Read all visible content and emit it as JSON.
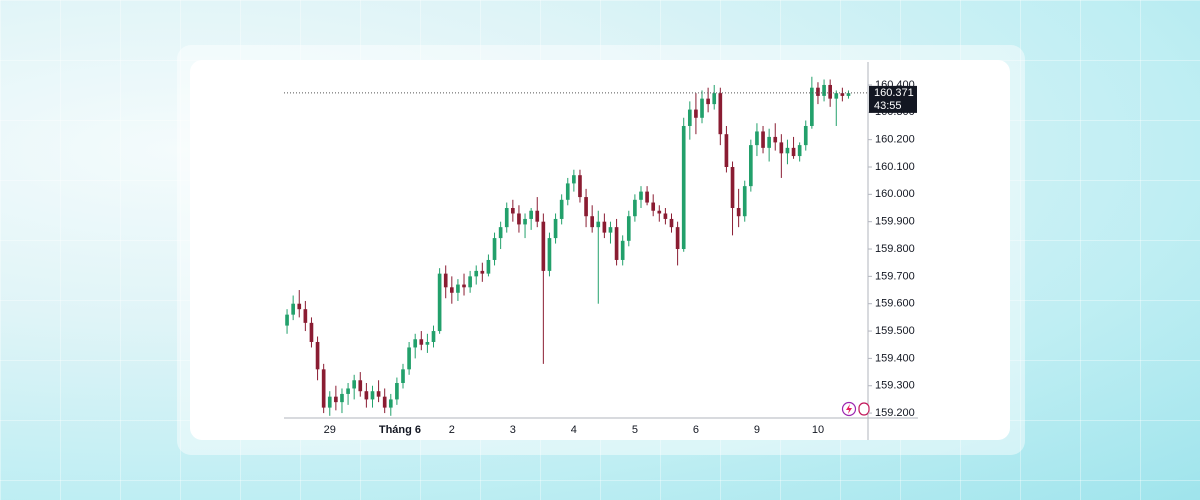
{
  "chart_data": {
    "type": "candlestick",
    "up_color": "#22a06b",
    "down_color": "#8a1c32",
    "xlim": [
      -0.5,
      95.2
    ],
    "xticks": [
      {
        "value": 7,
        "label": "29"
      },
      {
        "value": 18.5,
        "label": "Tháng 6"
      },
      {
        "value": 27,
        "label": "2"
      },
      {
        "value": 37,
        "label": "3"
      },
      {
        "value": 47,
        "label": "4"
      },
      {
        "value": 57,
        "label": "5"
      },
      {
        "value": 67,
        "label": "6"
      },
      {
        "value": 77,
        "label": "9"
      },
      {
        "value": 87,
        "label": "10"
      }
    ],
    "ylim": [
      159.182,
      160.484
    ],
    "yticks": [
      {
        "value": 159.2,
        "label": "159.200"
      },
      {
        "value": 159.3,
        "label": "159.300"
      },
      {
        "value": 159.4,
        "label": "159.400"
      },
      {
        "value": 159.5,
        "label": "159.500"
      },
      {
        "value": 159.6,
        "label": "159.600"
      },
      {
        "value": 159.7,
        "label": "159.700"
      },
      {
        "value": 159.8,
        "label": "159.800"
      },
      {
        "value": 159.9,
        "label": "159.900"
      },
      {
        "value": 160.0,
        "label": "160.000"
      },
      {
        "value": 160.1,
        "label": "160.100"
      },
      {
        "value": 160.2,
        "label": "160.200"
      },
      {
        "value": 160.3,
        "label": "160.300"
      },
      {
        "value": 160.4,
        "label": "160.400"
      }
    ],
    "last_price": 160.371,
    "countdown": "43:55",
    "ohlc": [
      [
        159.52,
        159.58,
        159.49,
        159.56
      ],
      [
        159.56,
        159.63,
        159.54,
        159.6
      ],
      [
        159.6,
        159.65,
        159.55,
        159.58
      ],
      [
        159.58,
        159.61,
        159.5,
        159.53
      ],
      [
        159.53,
        159.55,
        159.44,
        159.46
      ],
      [
        159.46,
        159.48,
        159.32,
        159.36
      ],
      [
        159.36,
        159.38,
        159.2,
        159.22
      ],
      [
        159.22,
        159.28,
        159.19,
        159.26
      ],
      [
        159.26,
        159.3,
        159.21,
        159.24
      ],
      [
        159.24,
        159.29,
        159.2,
        159.27
      ],
      [
        159.27,
        159.31,
        159.23,
        159.29
      ],
      [
        159.29,
        159.34,
        159.25,
        159.32
      ],
      [
        159.32,
        159.35,
        159.26,
        159.28
      ],
      [
        159.28,
        159.31,
        159.22,
        159.25
      ],
      [
        159.25,
        159.3,
        159.22,
        159.28
      ],
      [
        159.28,
        159.32,
        159.24,
        159.26
      ],
      [
        159.26,
        159.29,
        159.2,
        159.22
      ],
      [
        159.22,
        159.27,
        159.19,
        159.25
      ],
      [
        159.25,
        159.33,
        159.23,
        159.31
      ],
      [
        159.31,
        159.38,
        159.29,
        159.36
      ],
      [
        159.36,
        159.46,
        159.34,
        159.44
      ],
      [
        159.44,
        159.49,
        159.4,
        159.47
      ],
      [
        159.47,
        159.5,
        159.43,
        159.45
      ],
      [
        159.45,
        159.49,
        159.42,
        159.46
      ],
      [
        159.46,
        159.52,
        159.44,
        159.5
      ],
      [
        159.5,
        159.73,
        159.49,
        159.71
      ],
      [
        159.71,
        159.74,
        159.62,
        159.66
      ],
      [
        159.66,
        159.7,
        159.6,
        159.64
      ],
      [
        159.64,
        159.69,
        159.61,
        159.67
      ],
      [
        159.67,
        159.71,
        159.63,
        159.66
      ],
      [
        159.66,
        159.72,
        159.64,
        159.7
      ],
      [
        159.7,
        159.74,
        159.67,
        159.72
      ],
      [
        159.72,
        159.75,
        159.68,
        159.71
      ],
      [
        159.71,
        159.78,
        159.7,
        159.76
      ],
      [
        159.76,
        159.86,
        159.74,
        159.84
      ],
      [
        159.84,
        159.9,
        159.8,
        159.88
      ],
      [
        159.88,
        159.97,
        159.86,
        159.95
      ],
      [
        159.95,
        159.98,
        159.9,
        159.93
      ],
      [
        159.93,
        159.96,
        159.86,
        159.89
      ],
      [
        159.89,
        159.93,
        159.84,
        159.91
      ],
      [
        159.91,
        159.95,
        159.87,
        159.94
      ],
      [
        159.94,
        159.99,
        159.88,
        159.9
      ],
      [
        159.9,
        159.93,
        159.38,
        159.72
      ],
      [
        159.72,
        159.86,
        159.7,
        159.84
      ],
      [
        159.84,
        159.93,
        159.82,
        159.91
      ],
      [
        159.91,
        160.0,
        159.89,
        159.98
      ],
      [
        159.98,
        160.06,
        159.96,
        160.04
      ],
      [
        160.04,
        160.09,
        160.01,
        160.07
      ],
      [
        160.07,
        160.09,
        159.97,
        159.99
      ],
      [
        159.99,
        160.02,
        159.88,
        159.92
      ],
      [
        159.92,
        159.96,
        159.86,
        159.88
      ],
      [
        159.88,
        159.94,
        159.6,
        159.9
      ],
      [
        159.9,
        159.93,
        159.84,
        159.86
      ],
      [
        159.86,
        159.9,
        159.82,
        159.88
      ],
      [
        159.88,
        159.91,
        159.74,
        159.76
      ],
      [
        159.76,
        159.85,
        159.74,
        159.83
      ],
      [
        159.83,
        159.94,
        159.81,
        159.92
      ],
      [
        159.92,
        160.0,
        159.9,
        159.98
      ],
      [
        159.98,
        160.03,
        159.95,
        160.01
      ],
      [
        160.01,
        160.03,
        159.96,
        159.97
      ],
      [
        159.97,
        160.0,
        159.92,
        159.94
      ],
      [
        159.94,
        159.96,
        159.9,
        159.93
      ],
      [
        159.93,
        159.95,
        159.89,
        159.91
      ],
      [
        159.91,
        159.93,
        159.86,
        159.88
      ],
      [
        159.88,
        159.9,
        159.74,
        159.8
      ],
      [
        159.8,
        160.28,
        159.79,
        160.25
      ],
      [
        160.25,
        160.34,
        160.2,
        160.31
      ],
      [
        160.31,
        160.37,
        160.22,
        160.28
      ],
      [
        160.28,
        160.38,
        160.26,
        160.35
      ],
      [
        160.35,
        160.39,
        160.3,
        160.33
      ],
      [
        160.33,
        160.4,
        160.31,
        160.37
      ],
      [
        160.37,
        160.39,
        160.18,
        160.22
      ],
      [
        160.22,
        160.25,
        160.08,
        160.1
      ],
      [
        160.1,
        160.12,
        159.85,
        159.95
      ],
      [
        159.95,
        160.02,
        159.88,
        159.92
      ],
      [
        159.92,
        160.05,
        159.9,
        160.03
      ],
      [
        160.03,
        160.2,
        160.01,
        160.18
      ],
      [
        160.18,
        160.26,
        160.14,
        160.23
      ],
      [
        160.23,
        160.25,
        160.15,
        160.17
      ],
      [
        160.17,
        160.24,
        160.12,
        160.21
      ],
      [
        160.21,
        160.26,
        160.16,
        160.19
      ],
      [
        160.19,
        160.22,
        160.06,
        160.15
      ],
      [
        160.15,
        160.2,
        160.11,
        160.17
      ],
      [
        160.17,
        160.21,
        160.13,
        160.14
      ],
      [
        160.14,
        160.19,
        160.12,
        160.18
      ],
      [
        160.18,
        160.27,
        160.16,
        160.25
      ],
      [
        160.25,
        160.43,
        160.24,
        160.39
      ],
      [
        160.39,
        160.41,
        160.33,
        160.36
      ],
      [
        160.36,
        160.42,
        160.34,
        160.4
      ],
      [
        160.4,
        160.42,
        160.32,
        160.35
      ],
      [
        160.35,
        160.38,
        160.25,
        160.37
      ],
      [
        160.37,
        160.39,
        160.34,
        160.36
      ],
      [
        160.36,
        160.38,
        160.35,
        160.37
      ]
    ]
  }
}
